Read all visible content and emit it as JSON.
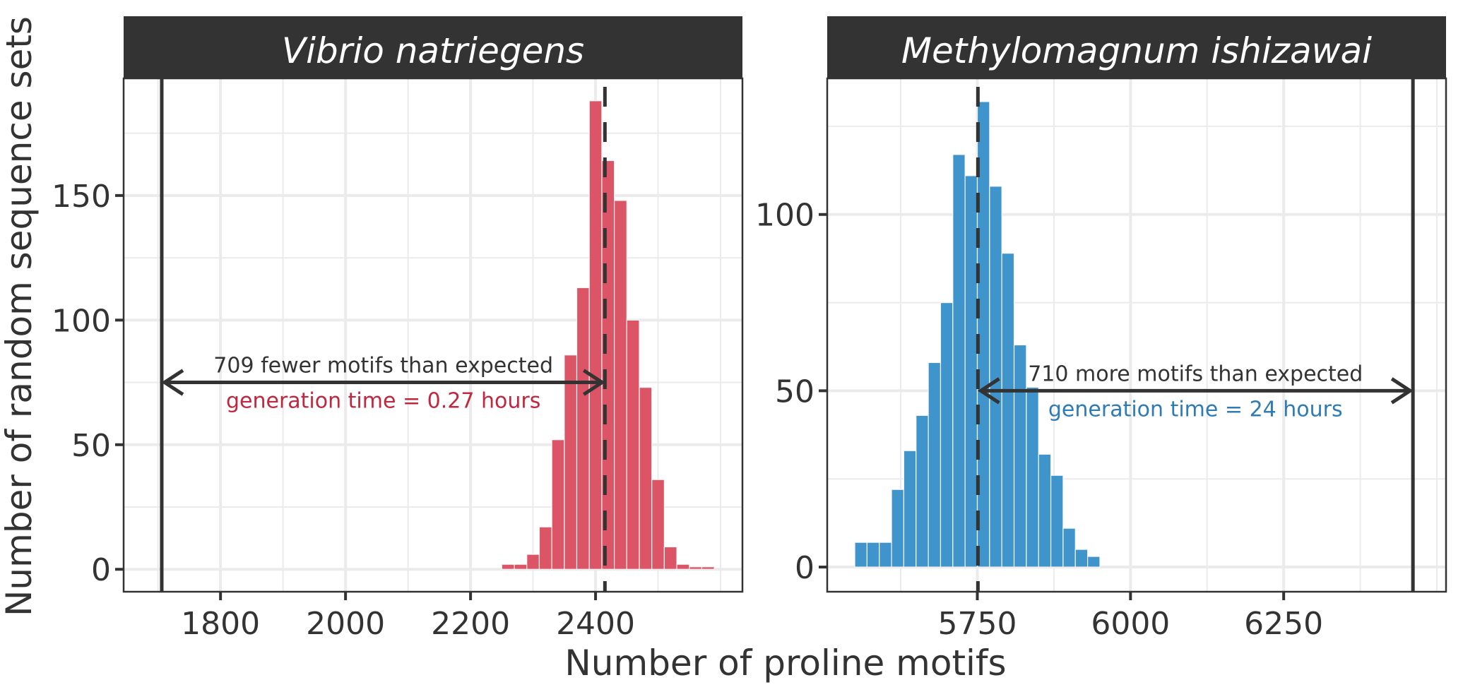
{
  "chart_data": {
    "type": "bar",
    "subtype": "faceted-histogram",
    "xlabel": "Number of proline motifs",
    "ylabel": "Number of random sequence sets",
    "grid": true,
    "bin_width": 20,
    "panels": [
      {
        "title": "Vibrio natriegens",
        "bar_color": "#DB5566",
        "accent_color": "#C0283F",
        "xlim": [
          1645,
          2635
        ],
        "ylim": [
          -9,
          197
        ],
        "x_ticks": [
          1800,
          2000,
          2200,
          2400
        ],
        "x_minor": [
          1700,
          1900,
          2100,
          2300,
          2500,
          2600
        ],
        "y_ticks": [
          0,
          50,
          100,
          150
        ],
        "y_minor": [
          25,
          75,
          125,
          175
        ],
        "bin_start": 2250,
        "counts": [
          2,
          2,
          6,
          17,
          52,
          86,
          113,
          188,
          164,
          148,
          100,
          73,
          36,
          9,
          2,
          1,
          1
        ],
        "expected_line": 2415,
        "observed_line": 1706,
        "annotation": {
          "text": "709 fewer motifs than expected",
          "subtext": "generation time = 0.27 hours",
          "arrow_y": 75,
          "arrow_from": 2415,
          "arrow_to": 1706
        }
      },
      {
        "title": "Methylomagnum ishizawai",
        "bar_color": "#3F95CB",
        "accent_color": "#2F7BB6",
        "xlim": [
          5505,
          6515
        ],
        "ylim": [
          -7,
          138.6
        ],
        "x_ticks": [
          5750,
          6000,
          6250
        ],
        "x_minor": [
          5625,
          5875,
          6125,
          6375,
          6500
        ],
        "y_ticks": [
          0,
          50,
          100
        ],
        "y_minor": [
          25,
          75,
          125
        ],
        "bin_start": 5550,
        "counts": [
          7,
          7,
          7,
          22,
          33,
          43,
          58,
          75,
          117,
          111,
          132,
          108,
          89,
          63,
          51,
          32,
          26,
          11,
          5,
          3
        ],
        "expected_line": 5751,
        "observed_line": 6461,
        "annotation": {
          "text": "710 more motifs than expected",
          "subtext": "generation time = 24 hours",
          "arrow_y": 50,
          "arrow_from": 5751,
          "arrow_to": 6461
        }
      }
    ]
  }
}
